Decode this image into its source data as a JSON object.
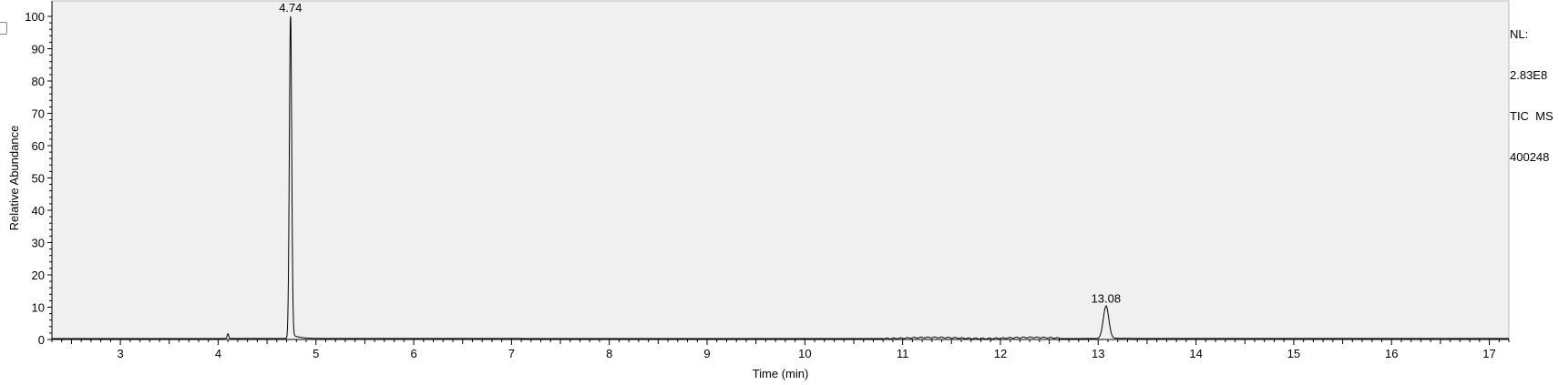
{
  "chart_data": {
    "type": "line",
    "xlabel": "Time (min)",
    "ylabel": "Relative Abundance",
    "xlim": [
      2.3,
      17.2
    ],
    "ylim": [
      0,
      100
    ],
    "x_ticks": [
      3,
      4,
      5,
      6,
      7,
      8,
      9,
      10,
      11,
      12,
      13,
      14,
      15,
      16,
      17
    ],
    "y_ticks": [
      0,
      10,
      20,
      30,
      40,
      50,
      60,
      70,
      80,
      90,
      100
    ],
    "grid": false,
    "peaks": [
      {
        "rt": 4.1,
        "height": 1.5,
        "width": 0.008,
        "labeled": false
      },
      {
        "rt": 4.74,
        "height": 100,
        "width": 0.012,
        "labeled": true,
        "label": "4.74"
      },
      {
        "rt": 13.08,
        "height": 10,
        "width": 0.028,
        "labeled": true,
        "label": "13.08"
      }
    ],
    "baseline": 0.3,
    "info_lines": [
      "NL:",
      "2.83E8",
      "TIC  MS",
      "400248"
    ]
  },
  "colors": {
    "plot_background": "#f0f0f0",
    "trace": "#000000",
    "axis": "#000000"
  }
}
